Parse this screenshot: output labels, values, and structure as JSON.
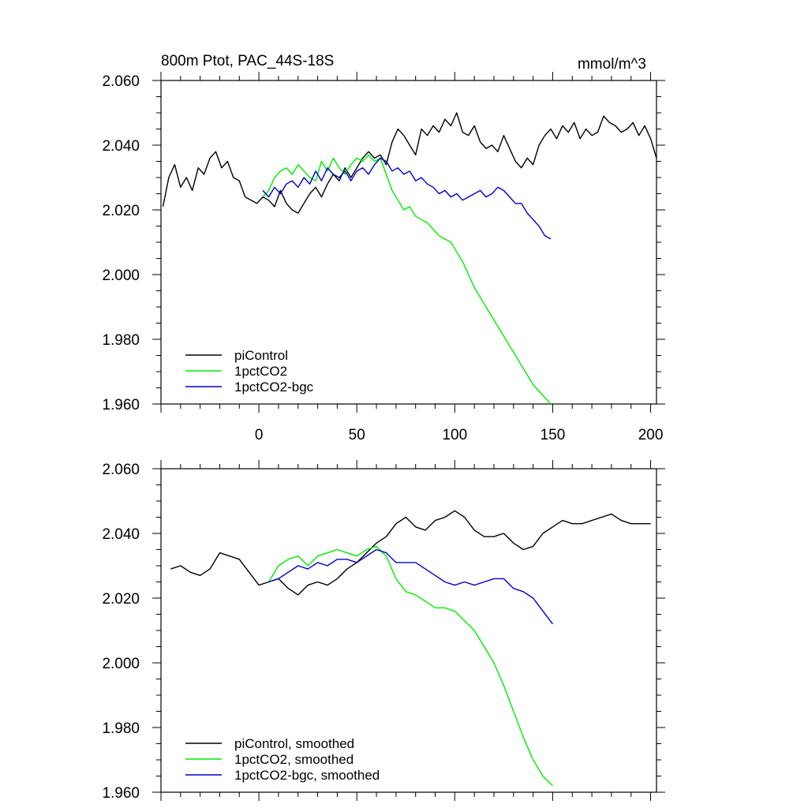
{
  "figure": {
    "title": "800m Ptot, PAC_44S-18S",
    "units": "mmol/m^3"
  },
  "colors": {
    "piControl": "#000000",
    "1pctCO2": "#00ee00",
    "1pctCO2-bgc": "#0000cc"
  },
  "chart_data": [
    {
      "type": "line",
      "panel": "top",
      "title": "800m Ptot, PAC_44S-18S",
      "units_label": "mmol/m^3",
      "xlabel": "",
      "ylabel": "",
      "xlim": [
        -50,
        203
      ],
      "ylim": [
        1.96,
        2.06
      ],
      "xticks": [
        0,
        50,
        100,
        150,
        200
      ],
      "xtick_labels": [
        "0",
        "50",
        "100",
        "150",
        "200"
      ],
      "yticks": [
        1.96,
        1.98,
        2.0,
        2.02,
        2.04,
        2.06
      ],
      "ytick_labels": [
        "1.960",
        "1.980",
        "2.000",
        "2.020",
        "2.040",
        "2.060"
      ],
      "legend": [
        "piControl",
        "1pctCO2",
        "1pctCO2-bgc"
      ],
      "legend_position": "bottom-left",
      "series": [
        {
          "name": "piControl",
          "color": "#000000",
          "x": [
            -49,
            -46,
            -43,
            -40,
            -37,
            -34,
            -31,
            -28,
            -25,
            -22,
            -19,
            -16,
            -13,
            -10,
            -7,
            -4,
            -1,
            2,
            5,
            8,
            11,
            14,
            17,
            20,
            23,
            26,
            29,
            32,
            35,
            38,
            41,
            44,
            47,
            50,
            53,
            56,
            59,
            62,
            65,
            68,
            71,
            74,
            77,
            80,
            83,
            86,
            89,
            92,
            95,
            98,
            101,
            104,
            107,
            110,
            113,
            116,
            119,
            122,
            125,
            128,
            131,
            134,
            137,
            140,
            143,
            146,
            149,
            152,
            155,
            158,
            161,
            164,
            167,
            170,
            173,
            176,
            179,
            182,
            185,
            188,
            191,
            194,
            197,
            200,
            203
          ],
          "y": [
            2.021,
            2.03,
            2.034,
            2.027,
            2.03,
            2.026,
            2.033,
            2.031,
            2.036,
            2.038,
            2.033,
            2.035,
            2.03,
            2.029,
            2.024,
            2.023,
            2.022,
            2.024,
            2.023,
            2.021,
            2.026,
            2.022,
            2.02,
            2.019,
            2.022,
            2.025,
            2.027,
            2.024,
            2.028,
            2.031,
            2.029,
            2.033,
            2.03,
            2.033,
            2.036,
            2.038,
            2.036,
            2.037,
            2.034,
            2.041,
            2.045,
            2.043,
            2.04,
            2.037,
            2.045,
            2.043,
            2.046,
            2.044,
            2.048,
            2.046,
            2.05,
            2.044,
            2.043,
            2.046,
            2.041,
            2.039,
            2.04,
            2.038,
            2.043,
            2.039,
            2.035,
            2.033,
            2.036,
            2.034,
            2.04,
            2.043,
            2.045,
            2.042,
            2.046,
            2.044,
            2.047,
            2.042,
            2.045,
            2.043,
            2.044,
            2.049,
            2.047,
            2.046,
            2.044,
            2.045,
            2.047,
            2.043,
            2.046,
            2.042,
            2.036
          ]
        },
        {
          "name": "1pctCO2",
          "color": "#00ee00",
          "x": [
            2,
            5,
            8,
            11,
            14,
            17,
            20,
            23,
            26,
            29,
            32,
            35,
            38,
            41,
            44,
            47,
            50,
            53,
            56,
            59,
            62,
            65,
            68,
            71,
            74,
            77,
            80,
            83,
            86,
            89,
            92,
            95,
            98,
            101,
            104,
            107,
            110,
            113,
            116,
            119,
            122,
            125,
            128,
            131,
            134,
            137,
            140,
            143,
            146,
            149
          ],
          "y": [
            2.024,
            2.026,
            2.03,
            2.032,
            2.033,
            2.031,
            2.034,
            2.032,
            2.03,
            2.029,
            2.035,
            2.032,
            2.036,
            2.033,
            2.031,
            2.034,
            2.036,
            2.035,
            2.037,
            2.035,
            2.036,
            2.031,
            2.026,
            2.023,
            2.02,
            2.021,
            2.018,
            2.017,
            2.016,
            2.014,
            2.012,
            2.011,
            2.01,
            2.007,
            2.004,
            2.0,
            1.996,
            1.993,
            1.99,
            1.987,
            1.984,
            1.981,
            1.978,
            1.975,
            1.972,
            1.969,
            1.966,
            1.964,
            1.962,
            1.96
          ]
        },
        {
          "name": "1pctCO2-bgc",
          "color": "#0000cc",
          "x": [
            2,
            5,
            8,
            11,
            14,
            17,
            20,
            23,
            26,
            29,
            32,
            35,
            38,
            41,
            44,
            47,
            50,
            53,
            56,
            59,
            62,
            65,
            68,
            71,
            74,
            77,
            80,
            83,
            86,
            89,
            92,
            95,
            98,
            101,
            104,
            107,
            110,
            113,
            116,
            119,
            122,
            125,
            128,
            131,
            134,
            137,
            140,
            143,
            146,
            149
          ],
          "y": [
            2.026,
            2.024,
            2.027,
            2.025,
            2.028,
            2.029,
            2.027,
            2.03,
            2.028,
            2.032,
            2.029,
            2.033,
            2.031,
            2.03,
            2.032,
            2.029,
            2.032,
            2.033,
            2.031,
            2.034,
            2.036,
            2.035,
            2.032,
            2.033,
            2.031,
            2.032,
            2.029,
            2.03,
            2.028,
            2.027,
            2.025,
            2.026,
            2.024,
            2.025,
            2.023,
            2.024,
            2.025,
            2.026,
            2.024,
            2.025,
            2.027,
            2.026,
            2.024,
            2.022,
            2.022,
            2.019,
            2.017,
            2.015,
            2.012,
            2.011
          ]
        }
      ]
    },
    {
      "type": "line",
      "panel": "bottom",
      "title": "",
      "xlabel": "",
      "ylabel": "",
      "xlim": [
        -50,
        203
      ],
      "ylim": [
        1.96,
        2.06
      ],
      "xticks": [
        0,
        50,
        100,
        150,
        200
      ],
      "xtick_labels": [],
      "yticks": [
        1.96,
        1.98,
        2.0,
        2.02,
        2.04,
        2.06
      ],
      "ytick_labels": [
        "1.960",
        "1.980",
        "2.000",
        "2.020",
        "2.040",
        "2.060"
      ],
      "legend": [
        "piControl, smoothed",
        "1pctCO2, smoothed",
        "1pctCO2-bgc, smoothed"
      ],
      "legend_position": "bottom-left",
      "series": [
        {
          "name": "piControl, smoothed",
          "color": "#000000",
          "x": [
            -45,
            -40,
            -35,
            -30,
            -25,
            -20,
            -15,
            -10,
            -5,
            0,
            5,
            10,
            15,
            20,
            25,
            30,
            35,
            40,
            45,
            50,
            55,
            60,
            65,
            70,
            75,
            80,
            85,
            90,
            95,
            100,
            105,
            110,
            115,
            120,
            125,
            130,
            135,
            140,
            145,
            150,
            155,
            160,
            165,
            170,
            175,
            180,
            185,
            190,
            195,
            200
          ],
          "y": [
            2.029,
            2.03,
            2.028,
            2.027,
            2.029,
            2.034,
            2.033,
            2.032,
            2.028,
            2.024,
            2.025,
            2.026,
            2.023,
            2.021,
            2.024,
            2.025,
            2.024,
            2.026,
            2.029,
            2.031,
            2.034,
            2.037,
            2.039,
            2.043,
            2.045,
            2.042,
            2.041,
            2.044,
            2.045,
            2.047,
            2.045,
            2.041,
            2.039,
            2.039,
            2.04,
            2.037,
            2.035,
            2.036,
            2.04,
            2.042,
            2.044,
            2.043,
            2.043,
            2.044,
            2.045,
            2.046,
            2.044,
            2.043,
            2.043,
            2.043
          ]
        },
        {
          "name": "1pctCO2, smoothed",
          "color": "#00ee00",
          "x": [
            5,
            10,
            15,
            20,
            25,
            30,
            35,
            40,
            45,
            50,
            55,
            60,
            65,
            70,
            75,
            80,
            85,
            90,
            95,
            100,
            105,
            110,
            115,
            120,
            125,
            130,
            135,
            140,
            145,
            150
          ],
          "y": [
            2.025,
            2.03,
            2.032,
            2.033,
            2.03,
            2.033,
            2.034,
            2.035,
            2.034,
            2.033,
            2.035,
            2.036,
            2.033,
            2.026,
            2.022,
            2.021,
            2.019,
            2.017,
            2.017,
            2.016,
            2.013,
            2.01,
            2.005,
            2.0,
            1.993,
            1.985,
            1.977,
            1.97,
            1.965,
            1.962
          ]
        },
        {
          "name": "1pctCO2-bgc, smoothed",
          "color": "#0000cc",
          "x": [
            5,
            10,
            15,
            20,
            25,
            30,
            35,
            40,
            45,
            50,
            55,
            60,
            65,
            70,
            75,
            80,
            85,
            90,
            95,
            100,
            105,
            110,
            115,
            120,
            125,
            130,
            135,
            140,
            145,
            150
          ],
          "y": [
            2.025,
            2.026,
            2.028,
            2.03,
            2.029,
            2.031,
            2.03,
            2.032,
            2.032,
            2.031,
            2.033,
            2.035,
            2.034,
            2.031,
            2.031,
            2.031,
            2.029,
            2.027,
            2.025,
            2.024,
            2.025,
            2.024,
            2.025,
            2.026,
            2.026,
            2.023,
            2.022,
            2.02,
            2.016,
            2.012
          ]
        }
      ]
    }
  ]
}
